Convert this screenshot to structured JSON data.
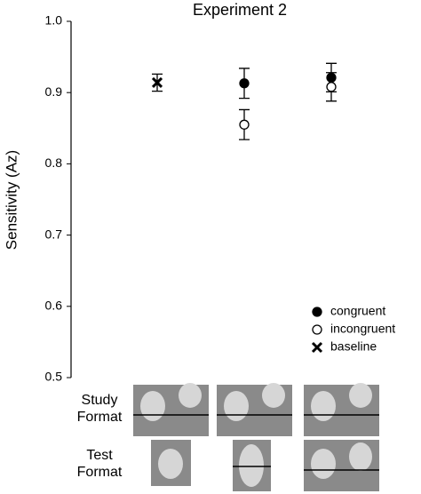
{
  "chart_data": {
    "type": "errorbar",
    "title": "Experiment 2",
    "y_label": "Sensitivity (Az)",
    "categories": [
      null,
      null,
      null
    ],
    "series": [
      {
        "name": "congruent",
        "color": "#000000",
        "marker": "filled-circle",
        "values": [
          null,
          0.913,
          0.921
        ],
        "errors": [
          null,
          0.021,
          0.02
        ]
      },
      {
        "name": "incongruent",
        "color": "#000000",
        "marker": "open-circle",
        "values": [
          null,
          0.855,
          0.908
        ],
        "errors": [
          null,
          0.021,
          0.02
        ]
      },
      {
        "name": "baseline",
        "color": "#000000",
        "marker": "x",
        "values": [
          0.914,
          null,
          null
        ],
        "errors": [
          0.012,
          null,
          null
        ]
      }
    ],
    "ylim": [
      0.5,
      1.0
    ],
    "yticks": [
      0.5,
      0.6,
      0.7,
      0.8,
      0.9,
      {
        "value": 1.0,
        "label": "1.0"
      }
    ],
    "legend": "lower right",
    "study_label": "Study Format",
    "test_label": "Test Format"
  }
}
